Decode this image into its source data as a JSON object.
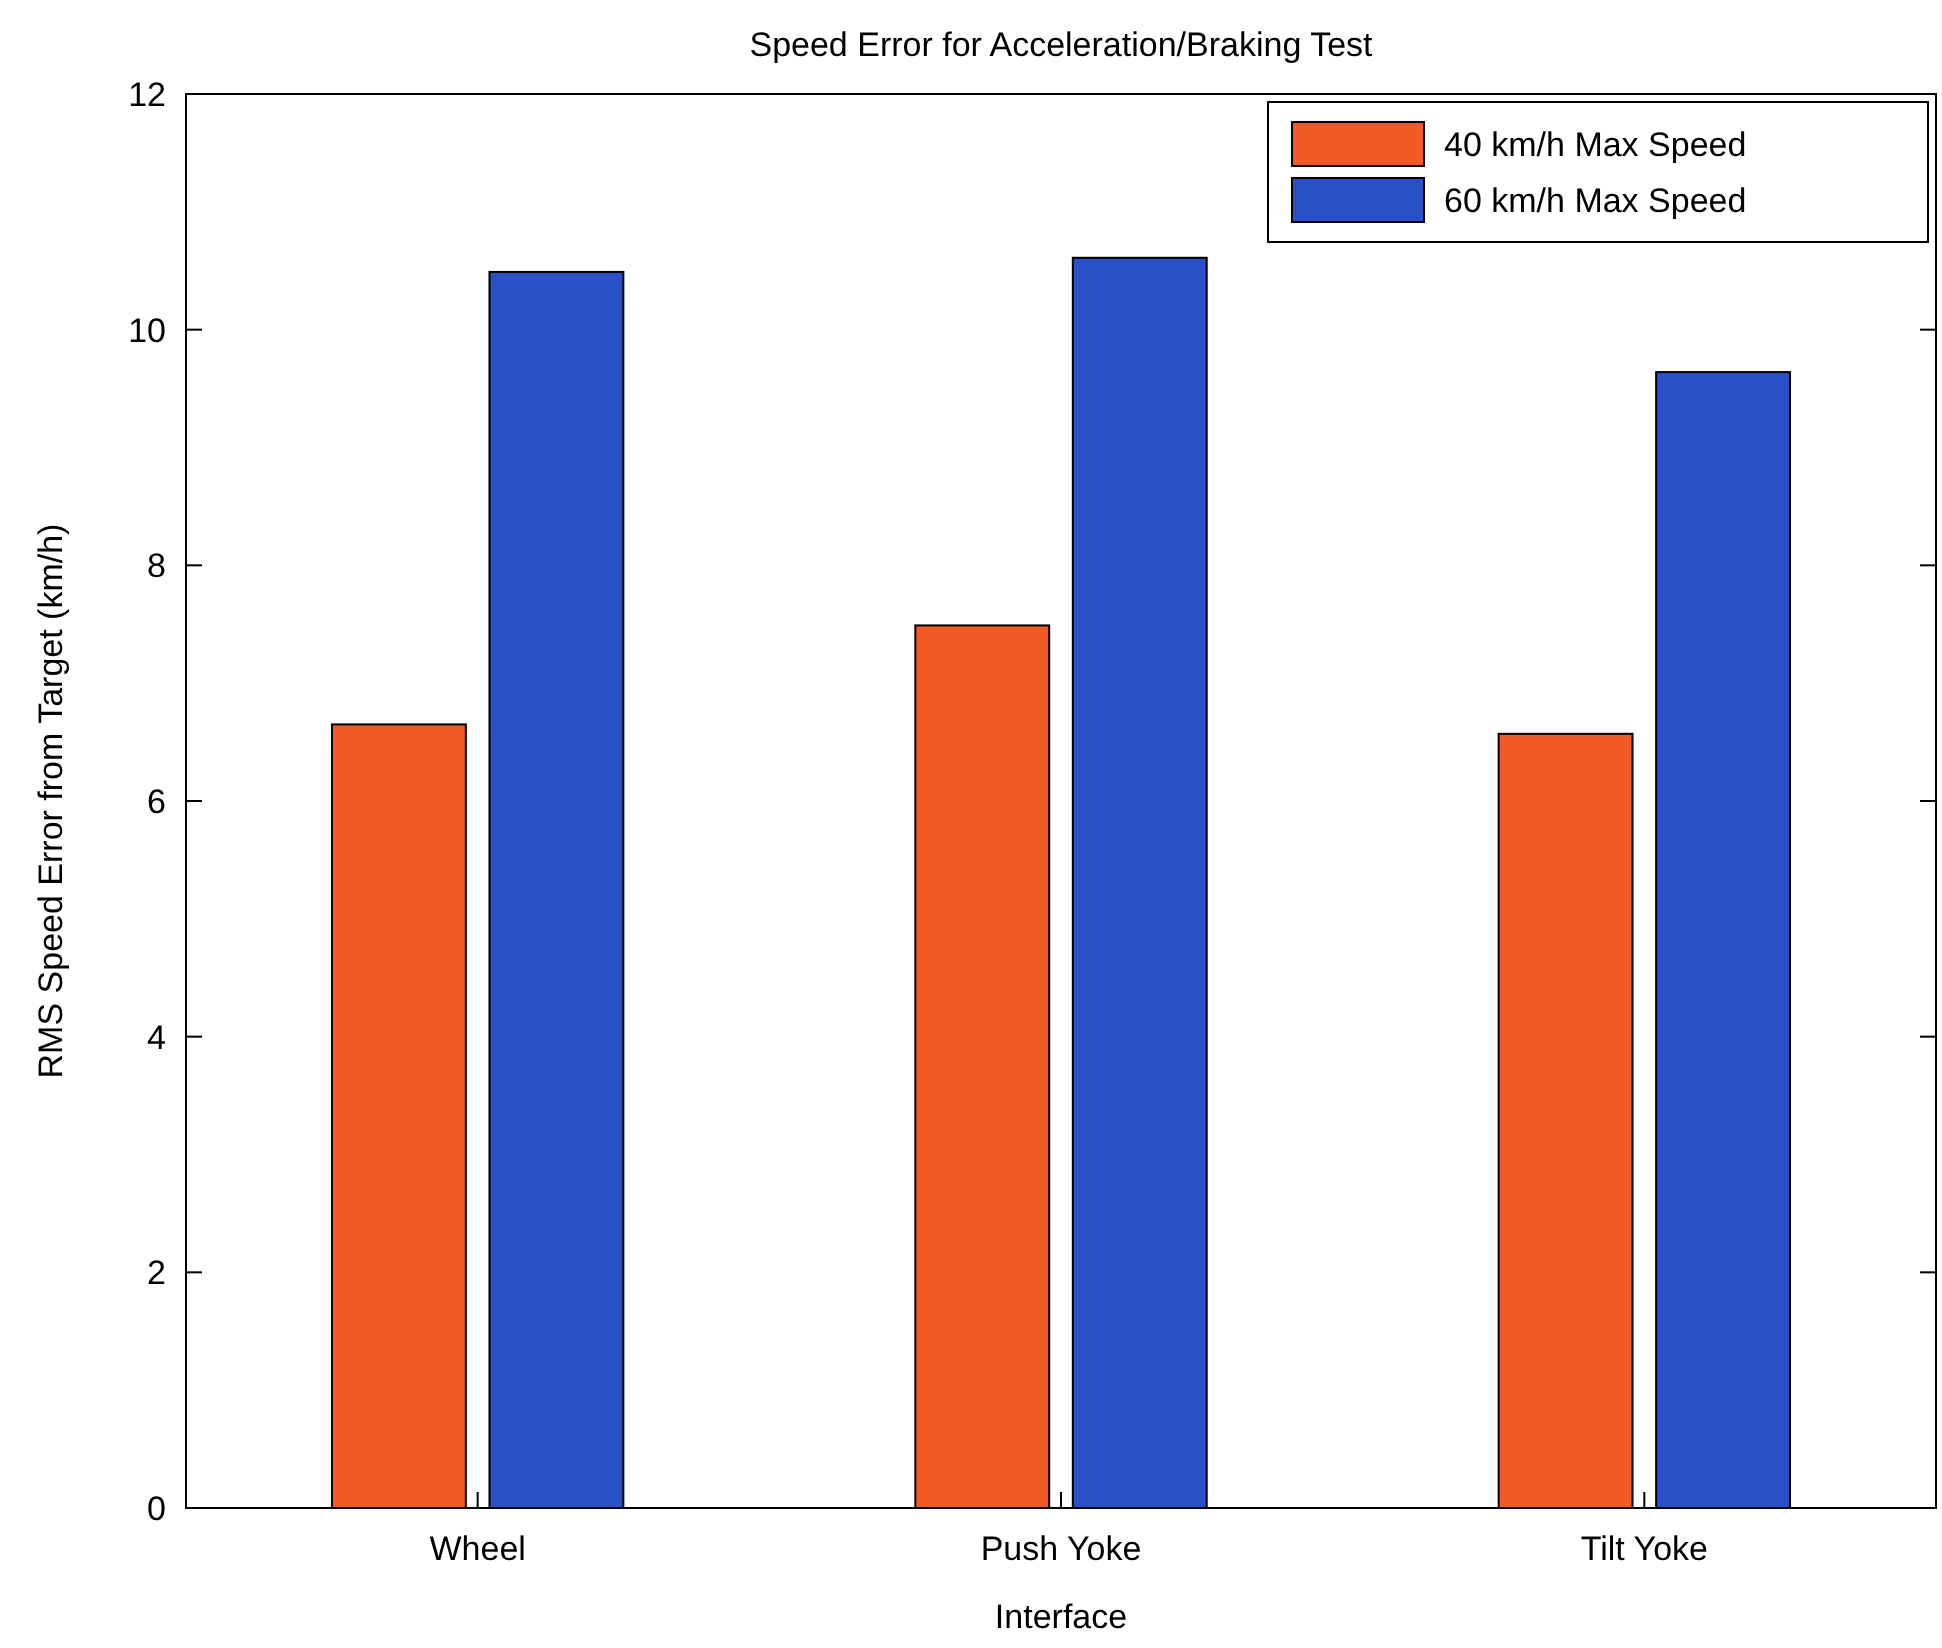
{
  "chart_data": {
    "type": "bar",
    "title": "Speed Error for Acceleration/Braking Test",
    "xlabel": "Interface",
    "ylabel": "RMS Speed Error from Target (km/h)",
    "categories": [
      "Wheel",
      "Push Yoke",
      "Tilt Yoke"
    ],
    "series": [
      {
        "name": "40 km/h Max Speed",
        "color": "#f05a24",
        "values": [
          6.65,
          7.49,
          6.57
        ]
      },
      {
        "name": "60 km/h Max Speed",
        "color": "#2a50c8",
        "values": [
          10.49,
          10.61,
          9.64
        ]
      }
    ],
    "ylim": [
      0,
      12
    ],
    "yticks": [
      0,
      2,
      4,
      6,
      8,
      10,
      12
    ],
    "grid": false,
    "legend": "top right"
  }
}
